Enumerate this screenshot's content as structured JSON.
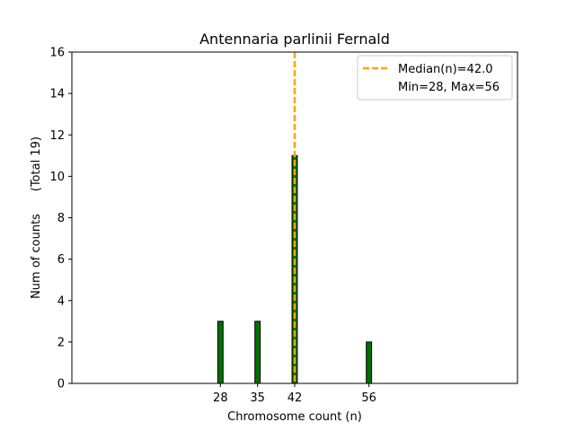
{
  "chart_data": {
    "type": "bar",
    "title": "Antennaria parlinii Fernald",
    "xlabel": "Chromosome count (n)",
    "ylabel": "Num of counts      (Total 19)",
    "x": [
      28,
      35,
      42,
      56
    ],
    "values": [
      3,
      3,
      11,
      2
    ],
    "xticks": [
      "28",
      "35",
      "42",
      "56"
    ],
    "yticks": [
      "0",
      "2",
      "4",
      "6",
      "8",
      "10",
      "12",
      "14",
      "16"
    ],
    "xlim": [
      0,
      84
    ],
    "ylim": [
      0,
      16
    ],
    "median": 42.0,
    "legend": {
      "placement": "top-right",
      "entries": [
        "Median(n)=42.0",
        "Min=28, Max=56"
      ]
    },
    "colors": {
      "bar_fill": "#007000",
      "bar_edge": "#000000",
      "median_line": "#ffa500"
    }
  }
}
